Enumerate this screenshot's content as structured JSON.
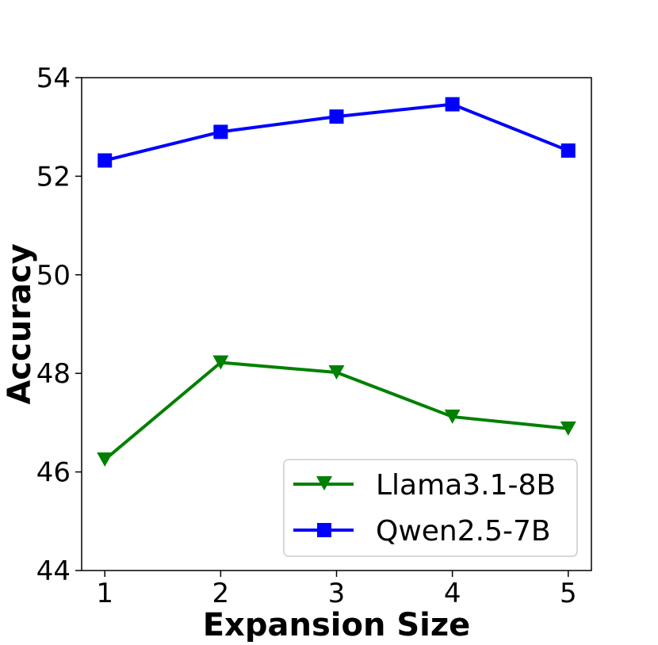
{
  "chart_data": {
    "type": "line",
    "title": "",
    "xlabel": "Expansion Size",
    "ylabel": "Accuracy",
    "x": [
      1,
      2,
      3,
      4,
      5
    ],
    "xticks": [
      "1",
      "2",
      "3",
      "4",
      "5"
    ],
    "yticks": [
      "44",
      "46",
      "48",
      "50",
      "52",
      "54"
    ],
    "ylim": [
      44,
      54
    ],
    "xlim": [
      0.8,
      5.2
    ],
    "grid": false,
    "legend_position": "bottom-right",
    "series": [
      {
        "name": "Llama3.1-8B",
        "values": [
          46.25,
          48.22,
          48.02,
          47.12,
          46.88
        ],
        "color": "#008000",
        "marker": "triangle-down"
      },
      {
        "name": "Qwen2.5-7B",
        "values": [
          52.32,
          52.9,
          53.21,
          53.46,
          52.52
        ],
        "color": "#0000ff",
        "marker": "square"
      }
    ]
  }
}
